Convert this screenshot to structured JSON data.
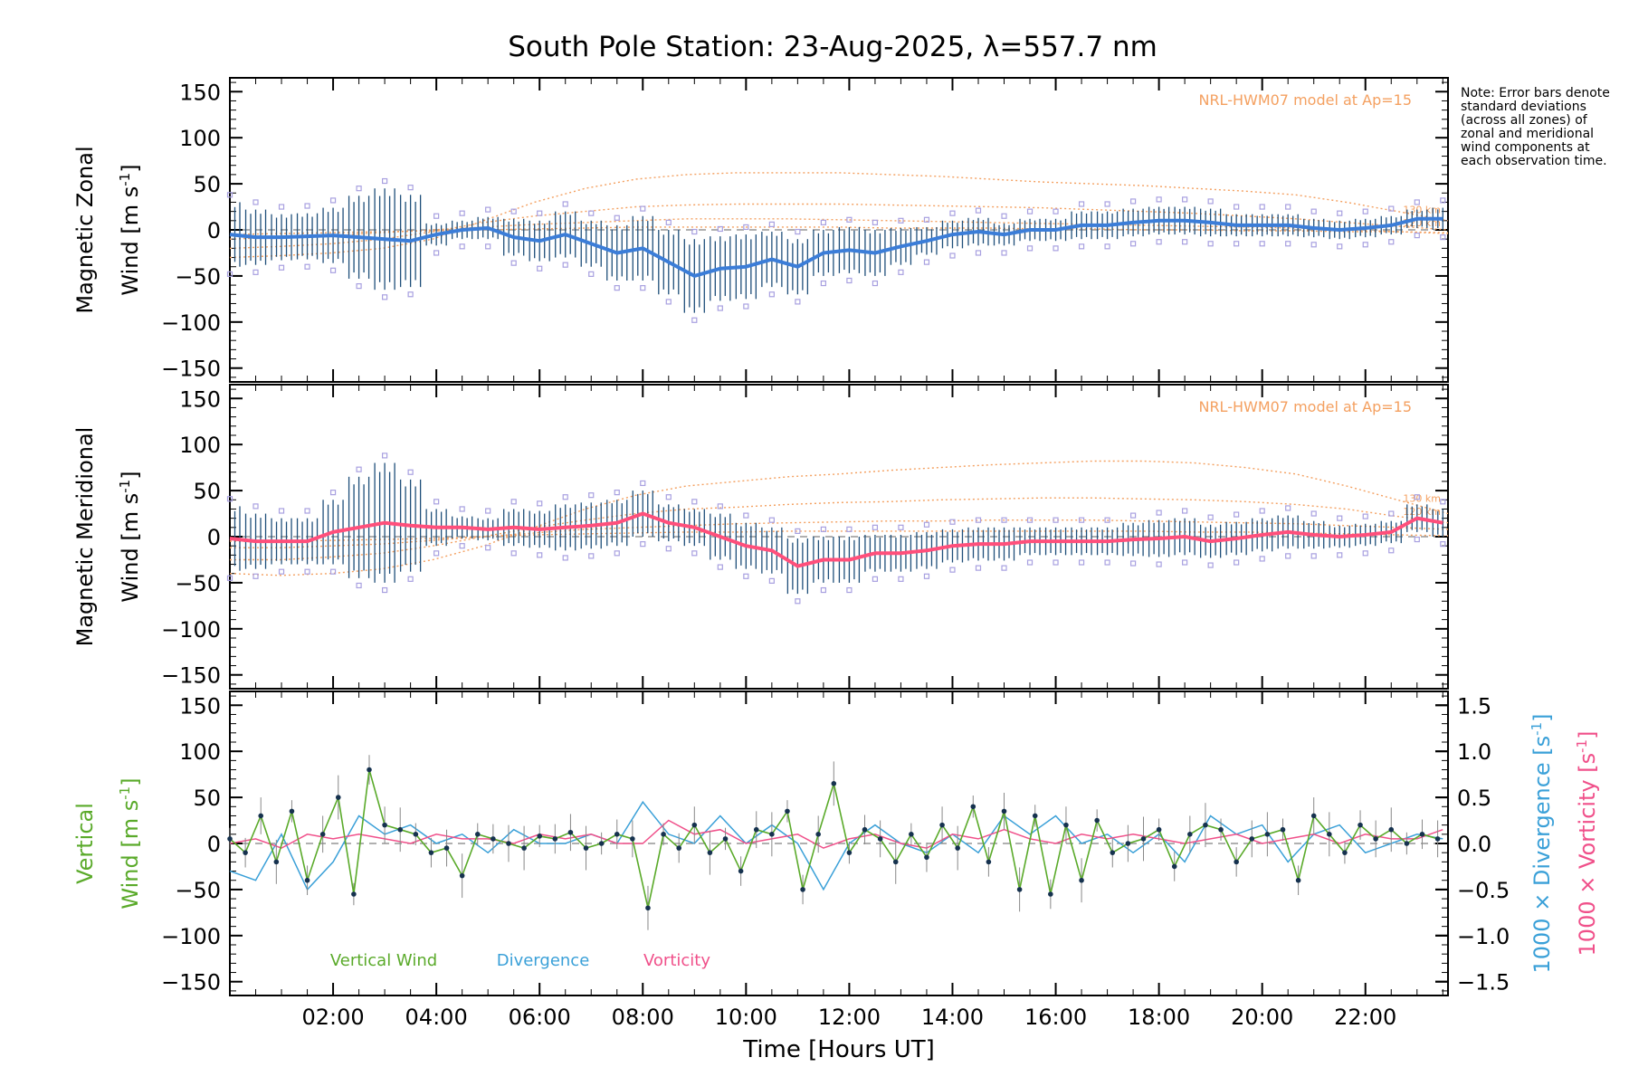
{
  "title": "South Pole Station: 23-Aug-2025, λ=557.7 nm",
  "note": "Note: Error bars denote standard deviations (across all zones) of zonal and meridional wind components at each observation time.",
  "colors": {
    "zonal": "#3b7dd8",
    "meridional": "#ff4f7b",
    "vertical": "#5aaa2a",
    "divergence": "#3aa0d8",
    "vorticity": "#f0508a",
    "model": "#f4a060",
    "outlier": "#a8a0e0",
    "errorbar": "#1f4f7a"
  },
  "chart_data": [
    {
      "type": "line",
      "panel": "zonal",
      "ylabel_line1": "Magnetic Zonal",
      "ylabel_line2": "Wind [m s",
      "ylabel_exp": "-1",
      "ylabel_close": "]",
      "model_label": "NRL-HWM07 model at Ap=15",
      "model_tags": [
        "130 km",
        "120 km"
      ],
      "ylim": [
        -165,
        165
      ],
      "yticks": [
        -150,
        -100,
        -50,
        0,
        50,
        100,
        150
      ],
      "xlim": [
        0,
        23.6
      ],
      "x": [
        0.0,
        0.5,
        1.0,
        1.5,
        2.0,
        2.5,
        3.0,
        3.5,
        4.0,
        4.5,
        5.0,
        5.5,
        6.0,
        6.5,
        7.0,
        7.5,
        8.0,
        8.5,
        9.0,
        9.5,
        10.0,
        10.5,
        11.0,
        11.5,
        12.0,
        12.5,
        13.0,
        13.5,
        14.0,
        14.5,
        15.0,
        15.5,
        16.0,
        16.5,
        17.0,
        17.5,
        18.0,
        18.5,
        19.0,
        19.5,
        20.0,
        20.5,
        21.0,
        21.5,
        22.0,
        22.5,
        23.0,
        23.5
      ],
      "values": [
        -5,
        -8,
        -8,
        -7,
        -6,
        -8,
        -10,
        -12,
        -5,
        0,
        2,
        -8,
        -12,
        -5,
        -15,
        -25,
        -20,
        -35,
        -50,
        -42,
        -40,
        -32,
        -40,
        -25,
        -22,
        -25,
        -18,
        -12,
        -5,
        -2,
        -5,
        0,
        0,
        5,
        5,
        8,
        10,
        10,
        8,
        5,
        5,
        5,
        2,
        0,
        2,
        5,
        12,
        12
      ],
      "errors": [
        35,
        30,
        25,
        25,
        30,
        45,
        55,
        50,
        12,
        10,
        12,
        20,
        22,
        25,
        25,
        30,
        35,
        35,
        40,
        35,
        35,
        30,
        30,
        25,
        25,
        25,
        20,
        15,
        15,
        15,
        12,
        12,
        12,
        15,
        15,
        15,
        15,
        15,
        15,
        12,
        12,
        12,
        10,
        10,
        10,
        10,
        10,
        12
      ],
      "model_curves": [
        [
          -30,
          -28,
          -25,
          -20,
          -10,
          10,
          30,
          45,
          55,
          60,
          62,
          62,
          62,
          60,
          58,
          55,
          52,
          50,
          48,
          45,
          42,
          38,
          30,
          20,
          10
        ],
        [
          -20,
          -18,
          -15,
          -10,
          -2,
          8,
          15,
          20,
          25,
          27,
          28,
          28,
          28,
          27,
          26,
          25,
          24,
          22,
          20,
          18,
          15,
          12,
          8,
          4,
          0
        ],
        [
          -10,
          -8,
          -6,
          -3,
          0,
          3,
          6,
          8,
          10,
          12,
          12,
          12,
          11,
          10,
          9,
          8,
          7,
          6,
          5,
          4,
          3,
          2,
          0,
          -2,
          -4
        ],
        [
          -5,
          -4,
          -3,
          -2,
          -1,
          0,
          1,
          2,
          3,
          3,
          3,
          3,
          3,
          2,
          2,
          2,
          1,
          1,
          0,
          0,
          -1,
          -1,
          -2,
          -2,
          -3
        ]
      ]
    },
    {
      "type": "line",
      "panel": "meridional",
      "ylabel_line1": "Magnetic Meridional",
      "ylabel_line2": "Wind [m s",
      "ylabel_exp": "-1",
      "ylabel_close": "]",
      "model_label": "NRL-HWM07 model at Ap=15",
      "model_tags": [
        "130 km",
        "120 km"
      ],
      "ylim": [
        -165,
        165
      ],
      "yticks": [
        -150,
        -100,
        -50,
        0,
        50,
        100,
        150
      ],
      "xlim": [
        0,
        23.6
      ],
      "x": [
        0.0,
        0.5,
        1.0,
        1.5,
        2.0,
        2.5,
        3.0,
        3.5,
        4.0,
        4.5,
        5.0,
        5.5,
        6.0,
        6.5,
        7.0,
        7.5,
        8.0,
        8.5,
        9.0,
        9.5,
        10.0,
        10.5,
        11.0,
        11.5,
        12.0,
        12.5,
        13.0,
        13.5,
        14.0,
        14.5,
        15.0,
        15.5,
        16.0,
        16.5,
        17.0,
        17.5,
        18.0,
        18.5,
        19.0,
        19.5,
        20.0,
        20.5,
        21.0,
        21.5,
        22.0,
        22.5,
        23.0,
        23.5
      ],
      "values": [
        -2,
        -5,
        -5,
        -5,
        5,
        10,
        15,
        12,
        10,
        10,
        8,
        10,
        8,
        10,
        12,
        15,
        25,
        15,
        10,
        0,
        -10,
        -15,
        -32,
        -25,
        -25,
        -18,
        -18,
        -15,
        -10,
        -8,
        -8,
        -5,
        -5,
        -5,
        -5,
        -3,
        -2,
        0,
        -5,
        -2,
        2,
        5,
        2,
        0,
        2,
        5,
        20,
        15
      ],
      "errors": [
        35,
        30,
        25,
        25,
        35,
        55,
        65,
        50,
        20,
        12,
        12,
        20,
        20,
        25,
        25,
        25,
        25,
        20,
        20,
        25,
        25,
        25,
        30,
        25,
        25,
        20,
        20,
        20,
        18,
        18,
        18,
        15,
        15,
        15,
        15,
        18,
        20,
        20,
        18,
        18,
        18,
        18,
        15,
        12,
        12,
        12,
        15,
        15
      ],
      "model_curves": [
        [
          -40,
          -42,
          -40,
          -35,
          -25,
          -10,
          10,
          30,
          45,
          55,
          60,
          65,
          68,
          72,
          75,
          78,
          80,
          82,
          82,
          80,
          75,
          68,
          55,
          40,
          25
        ],
        [
          -25,
          -25,
          -22,
          -18,
          -10,
          0,
          10,
          18,
          25,
          30,
          32,
          35,
          37,
          38,
          40,
          41,
          42,
          42,
          41,
          40,
          38,
          35,
          30,
          22,
          15
        ],
        [
          -12,
          -12,
          -10,
          -8,
          -4,
          0,
          4,
          8,
          10,
          12,
          14,
          15,
          16,
          17,
          17,
          18,
          18,
          18,
          17,
          16,
          15,
          14,
          12,
          10,
          8
        ],
        [
          -5,
          -5,
          -4,
          -3,
          -2,
          0,
          2,
          3,
          4,
          5,
          5,
          6,
          6,
          6,
          6,
          6,
          6,
          6,
          6,
          5,
          5,
          4,
          3,
          2,
          1
        ]
      ]
    },
    {
      "type": "line",
      "panel": "vertical",
      "ylabel_line1": "Vertical",
      "ylabel_line2": "Wind [m s",
      "ylabel_exp": "-1",
      "ylabel_close": "]",
      "ylim": [
        -165,
        165
      ],
      "yticks": [
        -150,
        -100,
        -50,
        0,
        50,
        100,
        150
      ],
      "y2lim": [
        -1.65,
        1.65
      ],
      "y2ticks": [
        -1.5,
        -1.0,
        -0.5,
        0.0,
        0.5,
        1.0,
        1.5
      ],
      "y2label_div": "1000 × Divergence [s",
      "y2label_vor": "1000 × Vorticity [s",
      "y2label_exp": "-1",
      "y2label_close": "]",
      "legend": [
        "Vertical Wind",
        "Divergence",
        "Vorticity"
      ],
      "xlim": [
        0,
        23.6
      ],
      "xticks": [
        "02:00",
        "04:00",
        "06:00",
        "08:00",
        "10:00",
        "12:00",
        "14:00",
        "16:00",
        "18:00",
        "20:00",
        "22:00"
      ],
      "xtick_values": [
        2,
        4,
        6,
        8,
        10,
        12,
        14,
        16,
        18,
        20,
        22
      ],
      "xlabel": "Time [Hours UT]",
      "series": [
        {
          "name": "Vertical Wind",
          "x": [
            0.0,
            0.3,
            0.6,
            0.9,
            1.2,
            1.5,
            1.8,
            2.1,
            2.4,
            2.7,
            3.0,
            3.3,
            3.6,
            3.9,
            4.2,
            4.5,
            4.8,
            5.1,
            5.4,
            5.7,
            6.0,
            6.3,
            6.6,
            6.9,
            7.2,
            7.5,
            7.8,
            8.1,
            8.4,
            8.7,
            9.0,
            9.3,
            9.6,
            9.9,
            10.2,
            10.5,
            10.8,
            11.1,
            11.4,
            11.7,
            12.0,
            12.3,
            12.6,
            12.9,
            13.2,
            13.5,
            13.8,
            14.1,
            14.4,
            14.7,
            15.0,
            15.3,
            15.6,
            15.9,
            16.2,
            16.5,
            16.8,
            17.1,
            17.4,
            17.7,
            18.0,
            18.3,
            18.6,
            18.9,
            19.2,
            19.5,
            19.8,
            20.1,
            20.4,
            20.7,
            21.0,
            21.3,
            21.6,
            21.9,
            22.2,
            22.5,
            22.8,
            23.1,
            23.4
          ],
          "values": [
            5,
            -10,
            30,
            -20,
            35,
            -40,
            10,
            50,
            -55,
            80,
            20,
            15,
            10,
            -10,
            -5,
            -35,
            10,
            5,
            0,
            -5,
            8,
            5,
            12,
            -5,
            0,
            10,
            5,
            -70,
            10,
            -5,
            20,
            -10,
            5,
            -30,
            15,
            10,
            35,
            -50,
            10,
            65,
            -10,
            15,
            5,
            -20,
            10,
            -15,
            20,
            -5,
            40,
            -20,
            35,
            -50,
            30,
            -55,
            20,
            -40,
            25,
            -10,
            0,
            5,
            15,
            -25,
            10,
            20,
            15,
            -20,
            5,
            10,
            15,
            -40,
            30,
            10,
            -10,
            20,
            5,
            15,
            0,
            10,
            5
          ]
        },
        {
          "name": "Divergence",
          "x": [
            0.0,
            0.5,
            1.0,
            1.5,
            2.0,
            2.5,
            3.0,
            3.5,
            4.0,
            4.5,
            5.0,
            5.5,
            6.0,
            6.5,
            7.0,
            7.5,
            8.0,
            8.5,
            9.0,
            9.5,
            10.0,
            10.5,
            11.0,
            11.5,
            12.0,
            12.5,
            13.0,
            13.5,
            14.0,
            14.5,
            15.0,
            15.5,
            16.0,
            16.5,
            17.0,
            17.5,
            18.0,
            18.5,
            19.0,
            19.5,
            20.0,
            20.5,
            21.0,
            21.5,
            22.0,
            22.5,
            23.0,
            23.5
          ],
          "values": [
            -0.3,
            -0.4,
            0.1,
            -0.5,
            -0.2,
            0.3,
            0.1,
            0.2,
            0.0,
            0.1,
            -0.1,
            0.15,
            0.0,
            0.0,
            0.1,
            0.0,
            0.45,
            0.1,
            0.0,
            0.3,
            0.0,
            0.2,
            0.0,
            -0.5,
            0.0,
            0.2,
            0.0,
            -0.1,
            0.1,
            -0.1,
            0.3,
            0.1,
            0.3,
            0.0,
            0.1,
            -0.1,
            0.1,
            -0.2,
            0.3,
            0.1,
            0.2,
            -0.2,
            0.1,
            0.2,
            -0.1,
            0.0,
            0.1,
            0.05
          ]
        },
        {
          "name": "Vorticity",
          "x": [
            0.0,
            0.5,
            1.0,
            1.5,
            2.0,
            2.5,
            3.0,
            3.5,
            4.0,
            4.5,
            5.0,
            5.5,
            6.0,
            6.5,
            7.0,
            7.5,
            8.0,
            8.5,
            9.0,
            9.5,
            10.0,
            10.5,
            11.0,
            11.5,
            12.0,
            12.5,
            13.0,
            13.5,
            14.0,
            14.5,
            15.0,
            15.5,
            16.0,
            16.5,
            17.0,
            17.5,
            18.0,
            18.5,
            19.0,
            19.5,
            20.0,
            20.5,
            21.0,
            21.5,
            22.0,
            22.5,
            23.0,
            23.5
          ],
          "values": [
            0.0,
            0.05,
            -0.05,
            0.1,
            0.05,
            0.1,
            0.05,
            0.0,
            0.1,
            0.05,
            0.05,
            0.0,
            0.1,
            0.05,
            0.1,
            0.0,
            0.0,
            0.25,
            0.1,
            0.15,
            0.0,
            0.05,
            0.1,
            -0.05,
            0.05,
            0.1,
            0.0,
            -0.05,
            0.1,
            0.05,
            0.15,
            0.05,
            0.0,
            0.1,
            0.05,
            0.1,
            0.05,
            0.0,
            0.05,
            0.1,
            0.0,
            0.05,
            0.1,
            0.0,
            0.1,
            0.05,
            0.05,
            0.15
          ]
        }
      ]
    }
  ]
}
